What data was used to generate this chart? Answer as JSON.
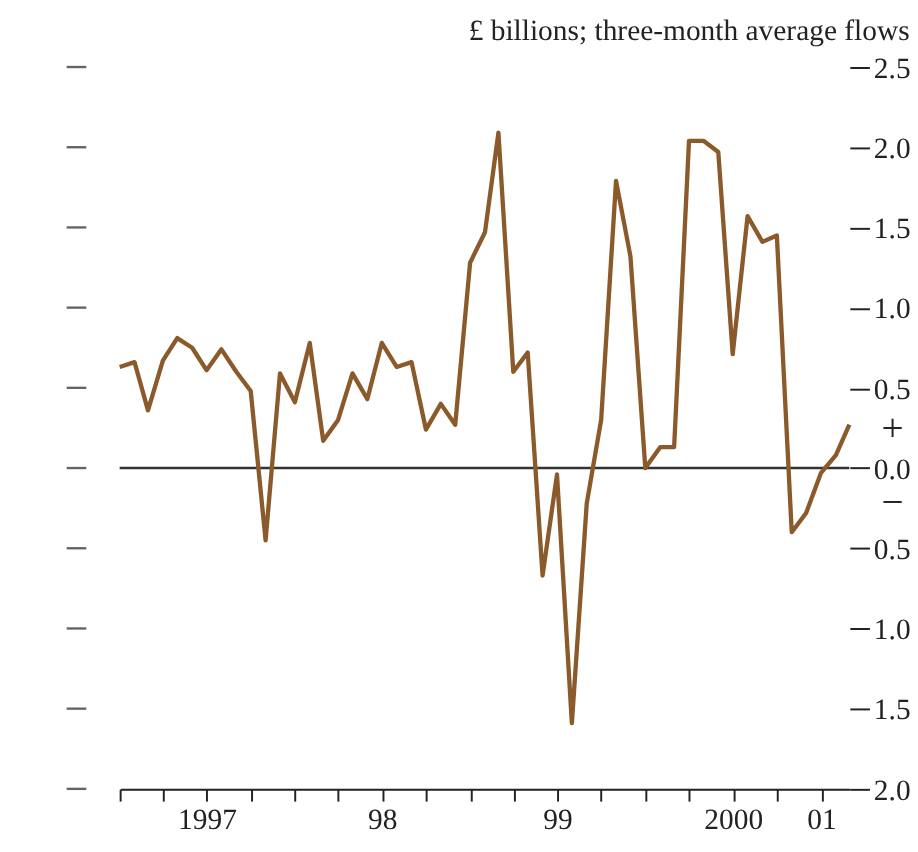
{
  "chart_data": {
    "type": "line",
    "title": "£ billions;  three-month average flows",
    "x": [
      "1997-01",
      "1997-02",
      "1997-03",
      "1997-04",
      "1997-05",
      "1997-06",
      "1997-07",
      "1997-08",
      "1997-09",
      "1997-10",
      "1997-11",
      "1997-12",
      "1998-01",
      "1998-02",
      "1998-03",
      "1998-04",
      "1998-05",
      "1998-06",
      "1998-07",
      "1998-08",
      "1998-09",
      "1998-10",
      "1998-11",
      "1998-12",
      "1999-01",
      "1999-02",
      "1999-03",
      "1999-04",
      "1999-05",
      "1999-06",
      "1999-07",
      "1999-08",
      "1999-09",
      "1999-10",
      "1999-11",
      "1999-12",
      "2000-01",
      "2000-02",
      "2000-03",
      "2000-04",
      "2000-05",
      "2000-06",
      "2000-07",
      "2000-08",
      "2000-09",
      "2000-10",
      "2000-11",
      "2000-12",
      "2001-01",
      "2001-02",
      "2001-03"
    ],
    "series": [
      {
        "color": "#8b5a2b",
        "values": [
          0.63,
          0.66,
          0.36,
          0.67,
          0.81,
          0.75,
          0.61,
          0.74,
          0.6,
          0.48,
          -0.45,
          0.59,
          0.41,
          0.78,
          0.17,
          0.3,
          0.59,
          0.43,
          0.78,
          0.63,
          0.66,
          0.24,
          0.4,
          0.27,
          1.28,
          1.47,
          2.09,
          0.6,
          0.72,
          -0.67,
          -0.04,
          -1.59,
          -0.22,
          0.3,
          1.79,
          1.32,
          0.0,
          0.13,
          0.13,
          2.04,
          2.04,
          1.97,
          0.71,
          1.57,
          1.41,
          1.45,
          -0.4,
          -0.28,
          -0.03,
          0.08,
          0.27
        ]
      }
    ],
    "xlim": [
      "1997-01",
      "2001-03"
    ],
    "xticks": [
      {
        "value": "1997-01",
        "label": null
      },
      {
        "value": "1997-04",
        "label": null
      },
      {
        "value": "1997-07",
        "label": "1997"
      },
      {
        "value": "1997-10",
        "label": null
      },
      {
        "value": "1998-01",
        "label": null
      },
      {
        "value": "1998-04",
        "label": null
      },
      {
        "value": "1998-07",
        "label": "98"
      },
      {
        "value": "1998-10",
        "label": null
      },
      {
        "value": "1999-01",
        "label": null
      },
      {
        "value": "1999-04",
        "label": null
      },
      {
        "value": "1999-07",
        "label": "99"
      },
      {
        "value": "1999-10",
        "label": null
      },
      {
        "value": "2000-01",
        "label": null
      },
      {
        "value": "2000-04",
        "label": null
      },
      {
        "value": "2000-07",
        "label": "2000"
      },
      {
        "value": "2000-10",
        "label": null
      },
      {
        "value": "2001-01",
        "label": "01"
      }
    ],
    "ylim": [
      -2.0,
      2.5
    ],
    "yticks": [
      {
        "value": -2.0,
        "label": "2.0"
      },
      {
        "value": -1.5,
        "label": "1.5"
      },
      {
        "value": -1.0,
        "label": "1.0"
      },
      {
        "value": -0.5,
        "label": "0.5"
      },
      {
        "value": 0.0,
        "label": "0.0"
      },
      0.5,
      {
        "value": 1.0,
        "label": "1.0"
      },
      1.5,
      {
        "value": 2.0,
        "label": "2.0"
      },
      2.5
    ],
    "ref_lines": [
      {
        "axis": "y",
        "value": 0,
        "color": "#333333"
      }
    ],
    "annotations": [
      "+",
      "−"
    ],
    "grid": false,
    "marker": "none",
    "line_style": "solid"
  }
}
